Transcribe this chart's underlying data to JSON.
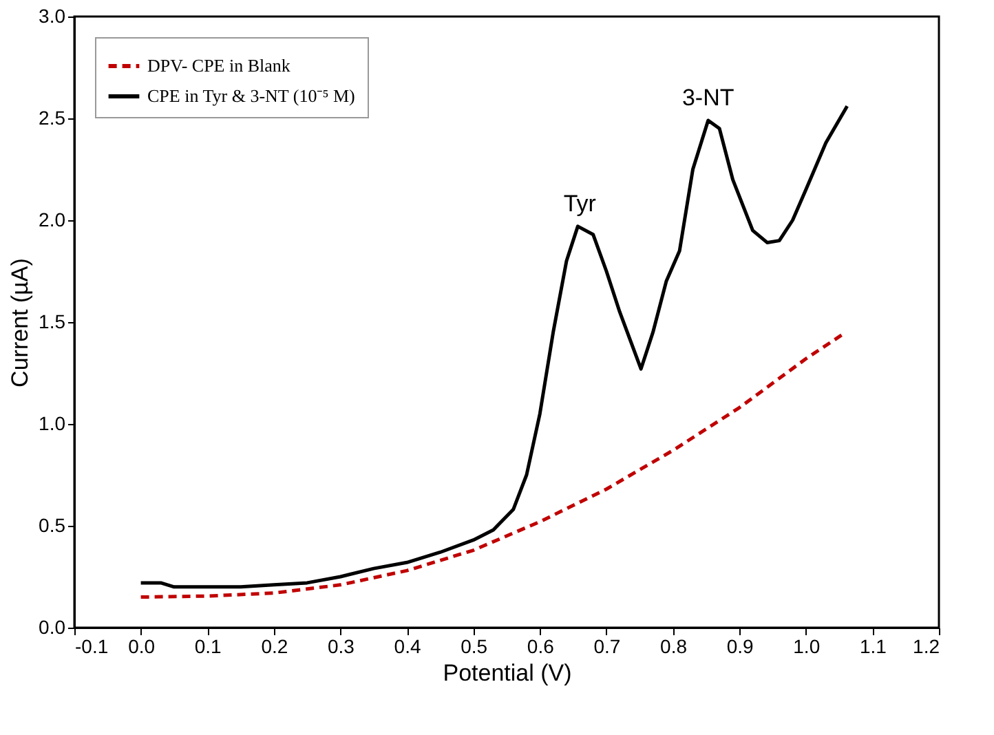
{
  "chart_data": {
    "type": "line",
    "xlabel": "Potential (V)",
    "ylabel": "Current (µA)",
    "xlim": [
      -0.1,
      1.2
    ],
    "ylim": [
      0,
      3.0
    ],
    "xticks": [
      {
        "value": -0.1,
        "label": "-0.1"
      },
      {
        "value": 0,
        "label": "0.0"
      },
      {
        "value": 0.1,
        "label": "0.1"
      },
      {
        "value": 0.2,
        "label": "0.2"
      },
      {
        "value": 0.3,
        "label": "0.3"
      },
      {
        "value": 0.4,
        "label": "0.4"
      },
      {
        "value": 0.5,
        "label": "0.5"
      },
      {
        "value": 0.6,
        "label": "0.6"
      },
      {
        "value": 0.7,
        "label": "0.7"
      },
      {
        "value": 0.8,
        "label": "0.8"
      },
      {
        "value": 0.9,
        "label": "0.9"
      },
      {
        "value": 1.0,
        "label": "1.0"
      },
      {
        "value": 1.1,
        "label": "1.1"
      },
      {
        "value": 1.2,
        "label": "1.2"
      }
    ],
    "yticks": [
      {
        "value": 0,
        "label": "0.0"
      },
      {
        "value": 0.5,
        "label": "0.5"
      },
      {
        "value": 1.0,
        "label": "1.0"
      },
      {
        "value": 1.5,
        "label": "1.5"
      },
      {
        "value": 2.0,
        "label": "2.0"
      },
      {
        "value": 2.5,
        "label": "2.5"
      },
      {
        "value": 3.0,
        "label": "3.0"
      }
    ],
    "grid": false,
    "legend": "top left",
    "annotations": [
      {
        "text": "Tyr",
        "x": 0.66,
        "y": 1.97
      },
      {
        "text": "3-NT",
        "x": 0.853,
        "y": 2.49
      }
    ],
    "series": [
      {
        "name": "DPV- CPE in Blank",
        "color": "#c00000",
        "line_style": "dashed",
        "x": [
          0,
          0.1,
          0.2,
          0.3,
          0.4,
          0.5,
          0.6,
          0.7,
          0.8,
          0.9,
          1.0,
          1.06
        ],
        "values": [
          0.15,
          0.155,
          0.17,
          0.21,
          0.28,
          0.38,
          0.52,
          0.68,
          0.87,
          1.08,
          1.32,
          1.45
        ]
      },
      {
        "name": "CPE in Tyr & 3-NT (10⁻⁵ M)",
        "color": "#000000",
        "line_style": "solid",
        "x": [
          0,
          0.03,
          0.05,
          0.1,
          0.15,
          0.2,
          0.25,
          0.3,
          0.35,
          0.4,
          0.45,
          0.5,
          0.53,
          0.56,
          0.58,
          0.6,
          0.62,
          0.64,
          0.657,
          0.68,
          0.7,
          0.72,
          0.752,
          0.77,
          0.79,
          0.81,
          0.83,
          0.853,
          0.87,
          0.89,
          0.92,
          0.942,
          0.96,
          0.98,
          1.0,
          1.03,
          1.062
        ],
        "values": [
          0.22,
          0.22,
          0.2,
          0.2,
          0.2,
          0.21,
          0.22,
          0.25,
          0.29,
          0.32,
          0.37,
          0.43,
          0.48,
          0.58,
          0.75,
          1.05,
          1.45,
          1.8,
          1.97,
          1.93,
          1.75,
          1.55,
          1.27,
          1.45,
          1.7,
          1.85,
          2.25,
          2.49,
          2.45,
          2.2,
          1.95,
          1.89,
          1.9,
          2.0,
          2.15,
          2.38,
          2.56
        ]
      }
    ]
  }
}
